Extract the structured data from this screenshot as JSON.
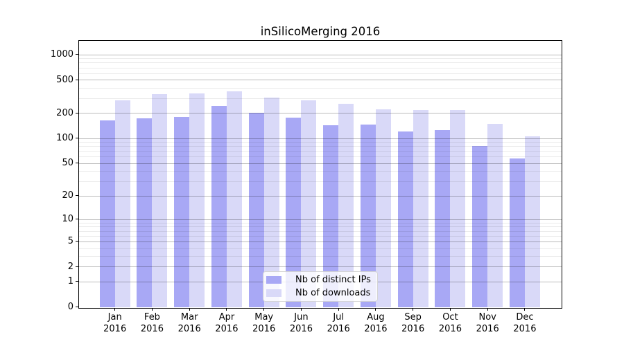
{
  "figure": {
    "title": "inSilicoMerging 2016"
  },
  "chart_data": {
    "type": "bar",
    "title": "inSilicoMerging 2016",
    "y_scale": "log1p",
    "ylim": [
      0,
      1450
    ],
    "grid": "horizontal major and minor gridlines, drawn over bars",
    "legend_position": "inside bottom-center",
    "categories": [
      "Jan",
      "Feb",
      "Mar",
      "Apr",
      "May",
      "Jun",
      "Jul",
      "Aug",
      "Sep",
      "Oct",
      "Nov",
      "Dec"
    ],
    "category_year": "2016",
    "yticks": [
      0,
      1,
      2,
      5,
      10,
      20,
      50,
      100,
      200,
      500,
      1000
    ],
    "minor_yticks": [
      3,
      4,
      6,
      7,
      8,
      9,
      30,
      40,
      60,
      70,
      80,
      90,
      300,
      400,
      600,
      700,
      800,
      900
    ],
    "series": [
      {
        "name": "Nb of distinct IPs",
        "color": "#a8a8f5",
        "values": [
          164,
          173,
          180,
          243,
          201,
          176,
          144,
          147,
          120,
          126,
          80,
          57
        ]
      },
      {
        "name": "Nb of downloads",
        "color": "#d9d9f8",
        "values": [
          285,
          340,
          346,
          366,
          307,
          283,
          259,
          222,
          218,
          218,
          150,
          106
        ]
      }
    ]
  },
  "colors": {
    "grid_major": "rgba(0,0,0,0.27)",
    "grid_minor": "rgba(0,0,0,0.08)",
    "spine": "#000000",
    "text": "#000000"
  }
}
